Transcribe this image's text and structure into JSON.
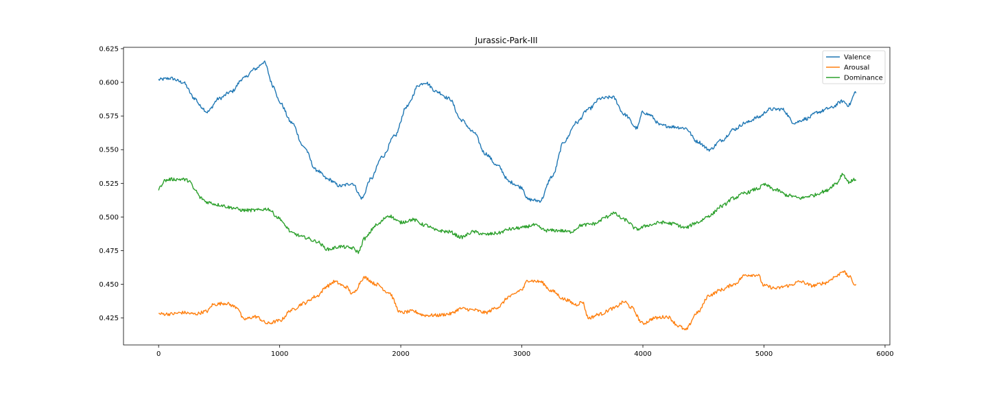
{
  "chart_data": {
    "type": "line",
    "title": "Jurassic-Park-III",
    "xlabel": "",
    "ylabel": "",
    "xlim": [
      -290,
      6040
    ],
    "ylim": [
      0.405,
      0.626
    ],
    "xticks": [
      0,
      1000,
      2000,
      3000,
      4000,
      5000,
      6000
    ],
    "yticks": [
      0.425,
      0.45,
      0.475,
      0.5,
      0.525,
      0.55,
      0.575,
      0.6,
      0.625
    ],
    "xtick_labels": [
      "0",
      "1000",
      "2000",
      "3000",
      "4000",
      "5000",
      "6000"
    ],
    "ytick_labels": [
      "0.425",
      "0.450",
      "0.475",
      "0.500",
      "0.525",
      "0.550",
      "0.575",
      "0.600",
      "0.625"
    ],
    "grid": false,
    "legend_position": "top-right",
    "series": [
      {
        "name": "Valence",
        "color": "#1f77b4",
        "x": [
          0,
          100,
          200,
          300,
          350,
          400,
          500,
          600,
          700,
          800,
          870,
          950,
          1000,
          1100,
          1200,
          1300,
          1400,
          1500,
          1600,
          1680,
          1750,
          1850,
          1950,
          2050,
          2150,
          2200,
          2300,
          2400,
          2500,
          2600,
          2700,
          2800,
          2900,
          3000,
          3050,
          3150,
          3250,
          3350,
          3450,
          3550,
          3650,
          3750,
          3850,
          3950,
          4000,
          4050,
          4150,
          4250,
          4350,
          4450,
          4550,
          4650,
          4750,
          4850,
          4950,
          5050,
          5150,
          5250,
          5350,
          5450,
          5550,
          5650,
          5700,
          5760
        ],
        "y": [
          0.602,
          0.603,
          0.6,
          0.588,
          0.582,
          0.578,
          0.588,
          0.593,
          0.603,
          0.61,
          0.615,
          0.597,
          0.585,
          0.57,
          0.552,
          0.535,
          0.528,
          0.523,
          0.525,
          0.514,
          0.528,
          0.545,
          0.56,
          0.582,
          0.598,
          0.6,
          0.593,
          0.588,
          0.572,
          0.563,
          0.547,
          0.538,
          0.526,
          0.522,
          0.513,
          0.512,
          0.53,
          0.556,
          0.57,
          0.58,
          0.588,
          0.589,
          0.576,
          0.566,
          0.578,
          0.576,
          0.568,
          0.567,
          0.566,
          0.556,
          0.55,
          0.557,
          0.565,
          0.57,
          0.574,
          0.58,
          0.58,
          0.57,
          0.573,
          0.578,
          0.581,
          0.586,
          0.583,
          0.593
        ]
      },
      {
        "name": "Arousal",
        "color": "#ff7f0e",
        "x": [
          0,
          100,
          200,
          300,
          400,
          450,
          550,
          650,
          700,
          800,
          900,
          1000,
          1100,
          1200,
          1300,
          1400,
          1450,
          1550,
          1600,
          1700,
          1800,
          1900,
          2000,
          2100,
          2200,
          2300,
          2400,
          2500,
          2600,
          2700,
          2800,
          2900,
          3000,
          3050,
          3150,
          3250,
          3350,
          3450,
          3500,
          3550,
          3650,
          3750,
          3850,
          3900,
          4000,
          4100,
          4200,
          4300,
          4350,
          4450,
          4550,
          4650,
          4750,
          4850,
          4950,
          5000,
          5100,
          5200,
          5300,
          5400,
          5500,
          5600,
          5650,
          5700,
          5760
        ],
        "y": [
          0.428,
          0.428,
          0.429,
          0.428,
          0.43,
          0.435,
          0.436,
          0.433,
          0.424,
          0.426,
          0.421,
          0.423,
          0.431,
          0.436,
          0.441,
          0.449,
          0.452,
          0.448,
          0.443,
          0.455,
          0.45,
          0.444,
          0.429,
          0.43,
          0.427,
          0.427,
          0.428,
          0.432,
          0.431,
          0.429,
          0.433,
          0.441,
          0.446,
          0.453,
          0.452,
          0.445,
          0.439,
          0.435,
          0.437,
          0.425,
          0.428,
          0.432,
          0.437,
          0.433,
          0.421,
          0.425,
          0.426,
          0.419,
          0.416,
          0.429,
          0.442,
          0.446,
          0.45,
          0.457,
          0.457,
          0.449,
          0.447,
          0.449,
          0.452,
          0.449,
          0.451,
          0.456,
          0.46,
          0.456,
          0.449
        ]
      },
      {
        "name": "Dominance",
        "color": "#2ca02c",
        "x": [
          0,
          50,
          100,
          200,
          250,
          300,
          350,
          400,
          500,
          600,
          700,
          800,
          900,
          1000,
          1050,
          1100,
          1200,
          1300,
          1400,
          1500,
          1600,
          1650,
          1700,
          1800,
          1900,
          2000,
          2100,
          2200,
          2300,
          2400,
          2500,
          2600,
          2700,
          2800,
          2900,
          3000,
          3100,
          3200,
          3300,
          3400,
          3500,
          3600,
          3700,
          3750,
          3850,
          3950,
          4050,
          4150,
          4250,
          4350,
          4450,
          4550,
          4650,
          4750,
          4850,
          4950,
          5000,
          5100,
          5200,
          5300,
          5400,
          5500,
          5600,
          5650,
          5700,
          5760
        ],
        "y": [
          0.521,
          0.527,
          0.528,
          0.528,
          0.527,
          0.52,
          0.514,
          0.511,
          0.509,
          0.507,
          0.505,
          0.505,
          0.506,
          0.499,
          0.493,
          0.488,
          0.485,
          0.482,
          0.476,
          0.478,
          0.477,
          0.474,
          0.484,
          0.494,
          0.501,
          0.496,
          0.498,
          0.494,
          0.49,
          0.489,
          0.485,
          0.489,
          0.487,
          0.488,
          0.491,
          0.492,
          0.494,
          0.49,
          0.49,
          0.489,
          0.494,
          0.495,
          0.5,
          0.503,
          0.498,
          0.491,
          0.494,
          0.496,
          0.495,
          0.492,
          0.496,
          0.501,
          0.508,
          0.514,
          0.518,
          0.521,
          0.524,
          0.52,
          0.516,
          0.514,
          0.516,
          0.519,
          0.525,
          0.532,
          0.526,
          0.528
        ]
      }
    ]
  }
}
